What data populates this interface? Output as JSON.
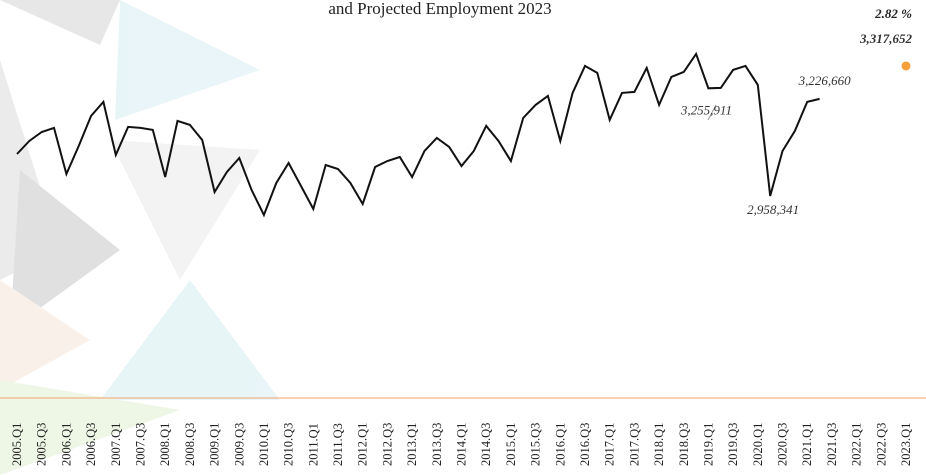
{
  "chart_data": {
    "type": "line",
    "title": "and Projected Employment 2023",
    "annotation": "2.82 %",
    "categories": [
      "2005.Q1",
      null,
      "2005.Q3",
      null,
      "2006.Q1",
      null,
      "2006.Q3",
      null,
      "2007.Q1",
      null,
      "2007.Q3",
      null,
      "2008.Q1",
      null,
      "2008.Q3",
      null,
      "2009.Q1",
      null,
      "2009.Q3",
      null,
      "2010.Q1",
      null,
      "2010.Q3",
      null,
      "2011.Q1",
      null,
      "2011.Q3",
      null,
      "2012.Q1",
      null,
      "2012.Q3",
      null,
      "2013.Q1",
      null,
      "2013.Q3",
      null,
      "2014.Q1",
      null,
      "2014.Q3",
      null,
      "2015.Q1",
      null,
      "2015.Q3",
      null,
      "2016.Q1",
      null,
      "2016.Q3",
      null,
      "2017.Q1",
      null,
      "2017.Q3",
      null,
      "2018.Q1",
      null,
      "2018.Q3",
      null,
      "2019.Q1",
      null,
      "2019.Q3",
      null,
      "2020.Q1",
      null,
      "2020.Q3",
      null,
      "2021.Q1",
      null,
      "2021.Q3",
      null,
      "2022.Q1",
      null,
      "2022.Q3",
      null,
      "2023.Q1"
    ],
    "ylim": [
      2400000,
      3500000
    ],
    "series": [
      {
        "color": "#111111",
        "values": [
          3074500,
          3110400,
          3135300,
          3146400,
          3019200,
          3096600,
          3179600,
          3218300,
          3071700,
          3149200,
          3146400,
          3140900,
          3010900,
          3165800,
          3154700,
          3113200,
          2969400,
          3024700,
          3063400,
          2974900,
          2905700,
          2994300,
          3049600,
          2986000,
          2922300,
          3044000,
          3033000,
          2994300,
          2936200,
          3038500,
          3055100,
          3066200,
          3010900,
          3082800,
          3118700,
          3093800,
          3041300,
          3082800,
          3151900,
          3110400,
          3055100,
          3174000,
          3210000,
          3234900,
          3110400,
          3243200,
          3317900,
          3298500,
          3168500,
          3243200,
          3246000,
          3312300,
          3210000,
          3287500,
          3301300,
          3351100,
          3255911,
          3257000,
          3306800,
          3317900,
          3265300,
          2958341,
          3082800,
          3138100,
          3218300,
          3226660,
          null,
          null,
          null,
          null,
          null,
          null,
          null
        ],
        "value_labels": [
          null,
          null,
          null,
          null,
          null,
          null,
          null,
          null,
          null,
          null,
          null,
          null,
          null,
          null,
          null,
          null,
          null,
          null,
          null,
          null,
          null,
          null,
          null,
          null,
          null,
          null,
          null,
          null,
          null,
          null,
          null,
          null,
          null,
          null,
          null,
          null,
          null,
          null,
          null,
          null,
          null,
          null,
          null,
          null,
          null,
          null,
          null,
          null,
          null,
          null,
          null,
          null,
          null,
          null,
          null,
          null,
          "3,255,911",
          null,
          null,
          null,
          null,
          "2,958,341",
          null,
          null,
          null,
          "3,226,660",
          null,
          null,
          null,
          null,
          null,
          null,
          null
        ]
      },
      {
        "color": "#f4a03b",
        "values": [
          null,
          null,
          null,
          null,
          null,
          null,
          null,
          null,
          null,
          null,
          null,
          null,
          null,
          null,
          null,
          null,
          null,
          null,
          null,
          null,
          null,
          null,
          null,
          null,
          null,
          null,
          null,
          null,
          null,
          null,
          null,
          null,
          null,
          null,
          null,
          null,
          null,
          null,
          null,
          null,
          null,
          null,
          null,
          null,
          null,
          null,
          null,
          null,
          null,
          null,
          null,
          null,
          null,
          null,
          null,
          null,
          null,
          null,
          null,
          null,
          null,
          null,
          null,
          null,
          null,
          null,
          null,
          null,
          null,
          null,
          null,
          null,
          3317652
        ],
        "value_labels": [
          null,
          null,
          null,
          null,
          null,
          null,
          null,
          null,
          null,
          null,
          null,
          null,
          null,
          null,
          null,
          null,
          null,
          null,
          null,
          null,
          null,
          null,
          null,
          null,
          null,
          null,
          null,
          null,
          null,
          null,
          null,
          null,
          null,
          null,
          null,
          null,
          null,
          null,
          null,
          null,
          null,
          null,
          null,
          null,
          null,
          null,
          null,
          null,
          null,
          null,
          null,
          null,
          null,
          null,
          null,
          null,
          null,
          null,
          null,
          null,
          null,
          null,
          null,
          null,
          null,
          null,
          null,
          null,
          null,
          null,
          null,
          null,
          "3,317,652"
        ]
      }
    ]
  }
}
